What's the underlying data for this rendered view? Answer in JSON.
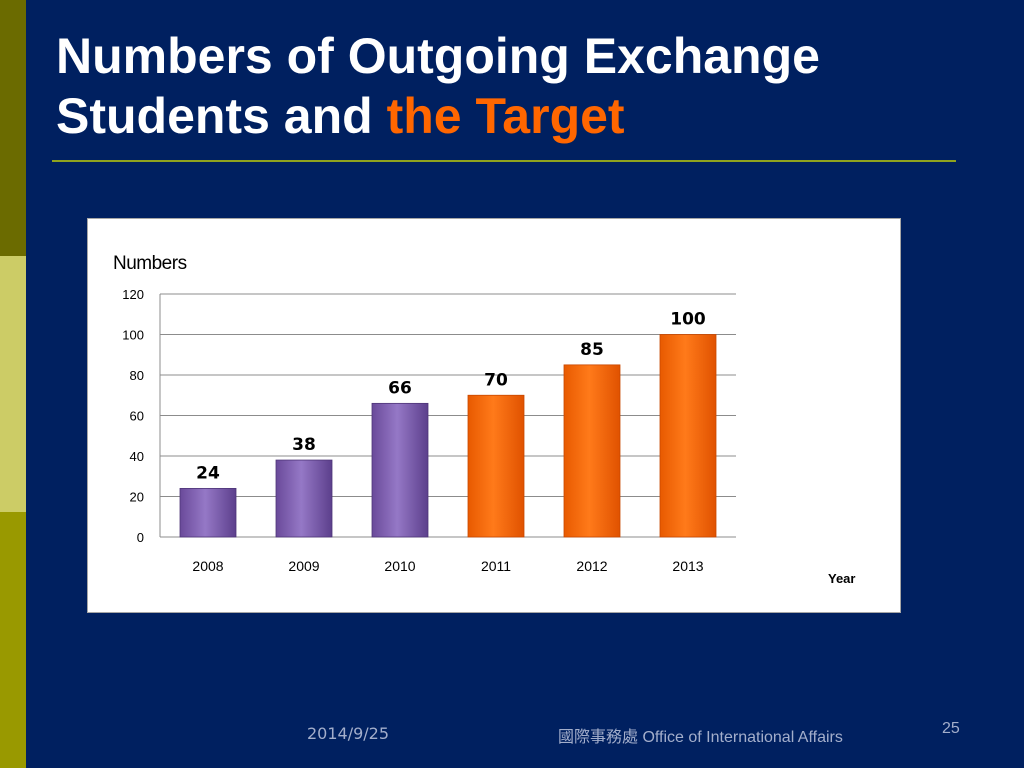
{
  "slide": {
    "title_line1": "Numbers of Outgoing Exchange",
    "title_line2_plain": "Students and ",
    "title_line2_accent": "the Target",
    "footer_date": "2014/9/25",
    "footer_office": "國際事務處  Office of International Affairs",
    "page_number": "25"
  },
  "colors": {
    "background": "#002060",
    "accent": "#ff6600",
    "actual_bar": "#7b5bab",
    "target_bar": "#ff6600"
  },
  "chart_data": {
    "type": "bar",
    "categories": [
      "2008",
      "2009",
      "2010",
      "2011",
      "2012",
      "2013"
    ],
    "values": [
      24,
      38,
      66,
      70,
      85,
      100
    ],
    "value_labels": [
      "24",
      "38",
      "66",
      "70",
      "85",
      "100"
    ],
    "bar_groups": [
      "actual",
      "actual",
      "actual",
      "target",
      "target",
      "target"
    ],
    "ylabel": "Numbers",
    "xlabel": "Year",
    "ylim": [
      0,
      120
    ],
    "yticks": [
      0,
      20,
      40,
      60,
      80,
      100,
      120
    ],
    "ytick_labels": [
      "0",
      "20",
      "40",
      "60",
      "80",
      "100",
      "120"
    ],
    "grid": true,
    "legend": "none"
  }
}
